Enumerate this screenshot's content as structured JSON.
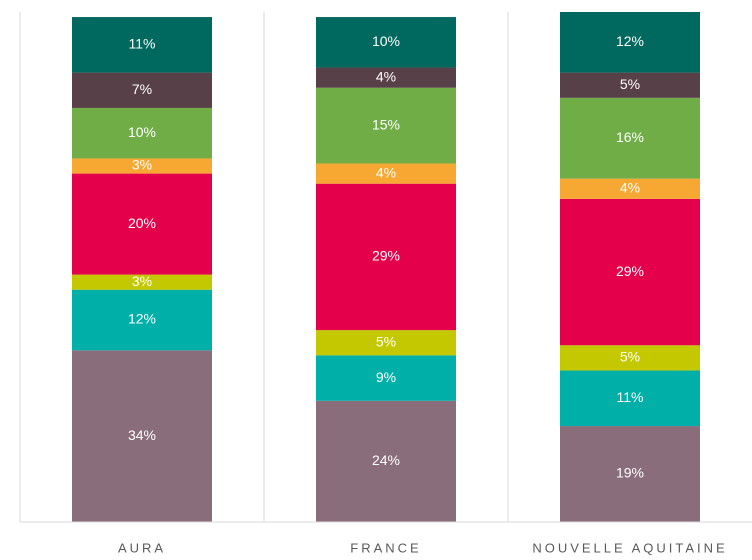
{
  "chart_data": {
    "type": "stacked_bar",
    "categories": [
      "AURA",
      "FRANCE",
      "NOUVELLE AQUITAINE"
    ],
    "series": [
      {
        "color": "#8a6d7a",
        "values": [
          34,
          24,
          19
        ],
        "value_labels": [
          "34%",
          "24%",
          "19%"
        ]
      },
      {
        "color": "#00b0a8",
        "values": [
          12,
          9,
          11
        ],
        "value_labels": [
          "12%",
          "9%",
          "11%"
        ]
      },
      {
        "color": "#c3c800",
        "values": [
          3,
          5,
          5
        ],
        "value_labels": [
          "3%",
          "5%",
          "5%"
        ]
      },
      {
        "color": "#e4004b",
        "values": [
          20,
          29,
          29
        ],
        "value_labels": [
          "20%",
          "29%",
          "29%"
        ]
      },
      {
        "color": "#f7a833",
        "values": [
          3,
          4,
          4
        ],
        "value_labels": [
          "3%",
          "4%",
          "4%"
        ]
      },
      {
        "color": "#70ad47",
        "values": [
          10,
          15,
          16
        ],
        "value_labels": [
          "10%",
          "15%",
          "16%"
        ]
      },
      {
        "color": "#574048",
        "values": [
          7,
          4,
          5
        ],
        "value_labels": [
          "7%",
          "4%",
          "5%"
        ]
      },
      {
        "color": "#00695f",
        "values": [
          11,
          10,
          12
        ],
        "value_labels": [
          "11%",
          "10%",
          "12%"
        ]
      }
    ]
  }
}
